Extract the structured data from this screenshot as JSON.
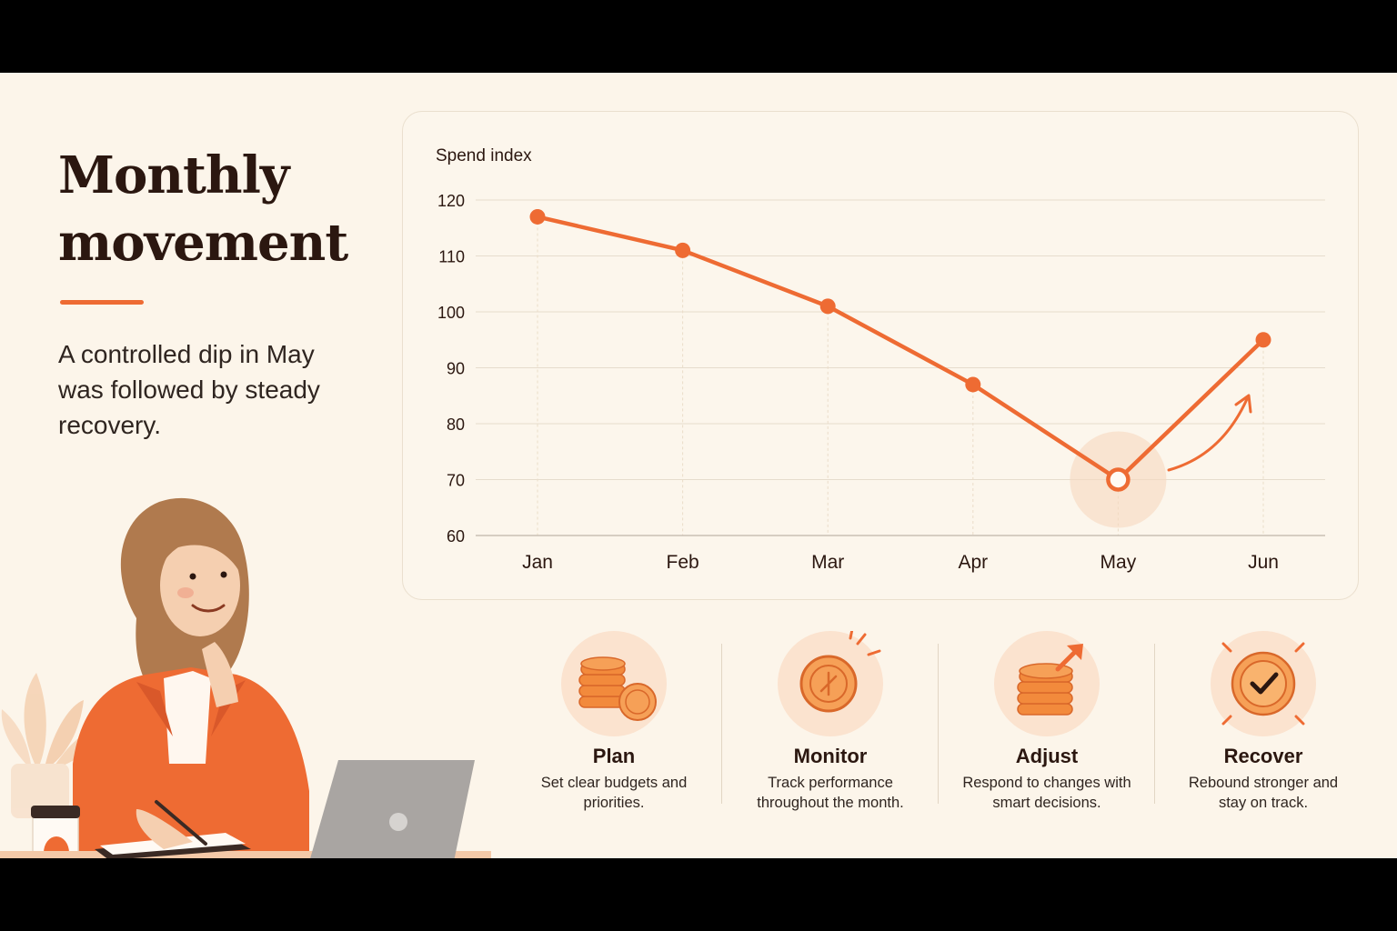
{
  "heading": {
    "title": "Monthly movement",
    "subtitle": "A controlled dip in May was followed by steady recovery."
  },
  "colors": {
    "accent": "#ee6b33",
    "background": "#fcf5ea",
    "text": "#2b1710"
  },
  "chart_data": {
    "type": "line",
    "title": "",
    "ylabel": "Spend index",
    "xlabel": "",
    "categories": [
      "Jan",
      "Feb",
      "Mar",
      "Apr",
      "May",
      "Jun"
    ],
    "series": [
      {
        "values": [
          117,
          111,
          101,
          87,
          70,
          95
        ]
      }
    ],
    "ylim": [
      60,
      120
    ],
    "yticks": [
      120,
      110,
      100,
      90,
      80,
      70,
      60
    ],
    "grid": true,
    "highlight": {
      "category": "May",
      "style": "hollow-marker-with-halo"
    },
    "annotation": "upward-arrow-after-May"
  },
  "steps": [
    {
      "icon": "coin-stack-icon",
      "title": "Plan",
      "desc": "Set clear budgets and priorities."
    },
    {
      "icon": "coin-magnifier-icon",
      "title": "Monitor",
      "desc": "Track performance throughout the month."
    },
    {
      "icon": "coins-arrow-up-icon",
      "title": "Adjust",
      "desc": "Respond to changes with smart decisions."
    },
    {
      "icon": "check-badge-icon",
      "title": "Recover",
      "desc": "Rebound stronger and stay on track."
    }
  ]
}
